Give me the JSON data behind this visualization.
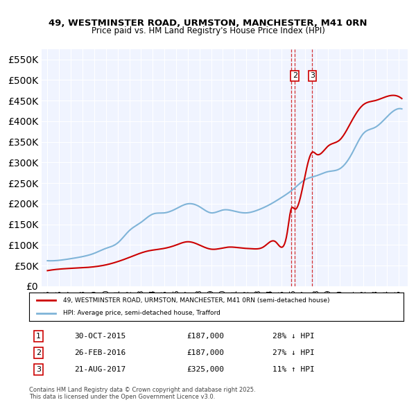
{
  "title_line1": "49, WESTMINSTER ROAD, URMSTON, MANCHESTER, M41 0RN",
  "title_line2": "Price paid vs. HM Land Registry's House Price Index (HPI)",
  "ylabel": "",
  "background_color": "#f0f4ff",
  "plot_bg": "#f0f4ff",
  "legend_label_red": "49, WESTMINSTER ROAD, URMSTON, MANCHESTER, M41 0RN (semi-detached house)",
  "legend_label_blue": "HPI: Average price, semi-detached house, Trafford",
  "transactions": [
    {
      "id": 1,
      "date": "30-OCT-2015",
      "price": 187000,
      "pct": "28%",
      "dir": "↓",
      "x_year": 2015.83
    },
    {
      "id": 2,
      "date": "26-FEB-2016",
      "price": 187000,
      "pct": "27%",
      "dir": "↓",
      "x_year": 2016.15
    },
    {
      "id": 3,
      "date": "21-AUG-2017",
      "price": 325000,
      "pct": "11%",
      "dir": "↑",
      "x_year": 2017.64
    }
  ],
  "footer": "Contains HM Land Registry data © Crown copyright and database right 2025.\nThis data is licensed under the Open Government Licence v3.0.",
  "red_color": "#cc0000",
  "blue_color": "#7fb4d8",
  "ylim_min": 0,
  "ylim_max": 575000,
  "xlim_min": 1994.5,
  "xlim_max": 2025.8
}
